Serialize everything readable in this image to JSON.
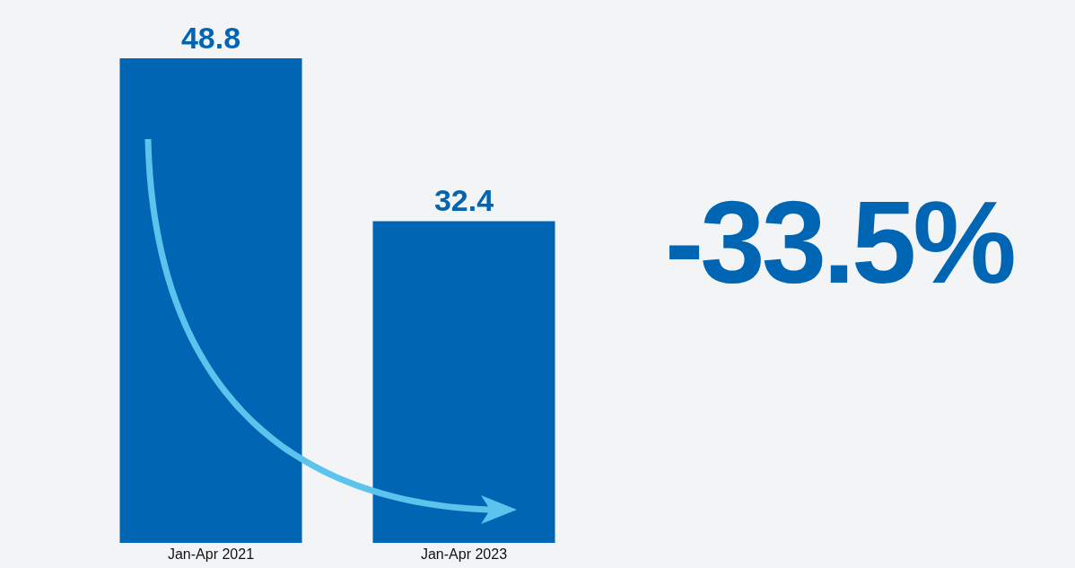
{
  "chart_data": {
    "type": "bar",
    "categories": [
      "Jan-Apr 2021",
      "Jan-Apr 2023"
    ],
    "values": [
      48.8,
      32.4
    ],
    "color": "#0066b3",
    "data_labels": true,
    "annotations": [
      "-33.5%"
    ]
  }
}
